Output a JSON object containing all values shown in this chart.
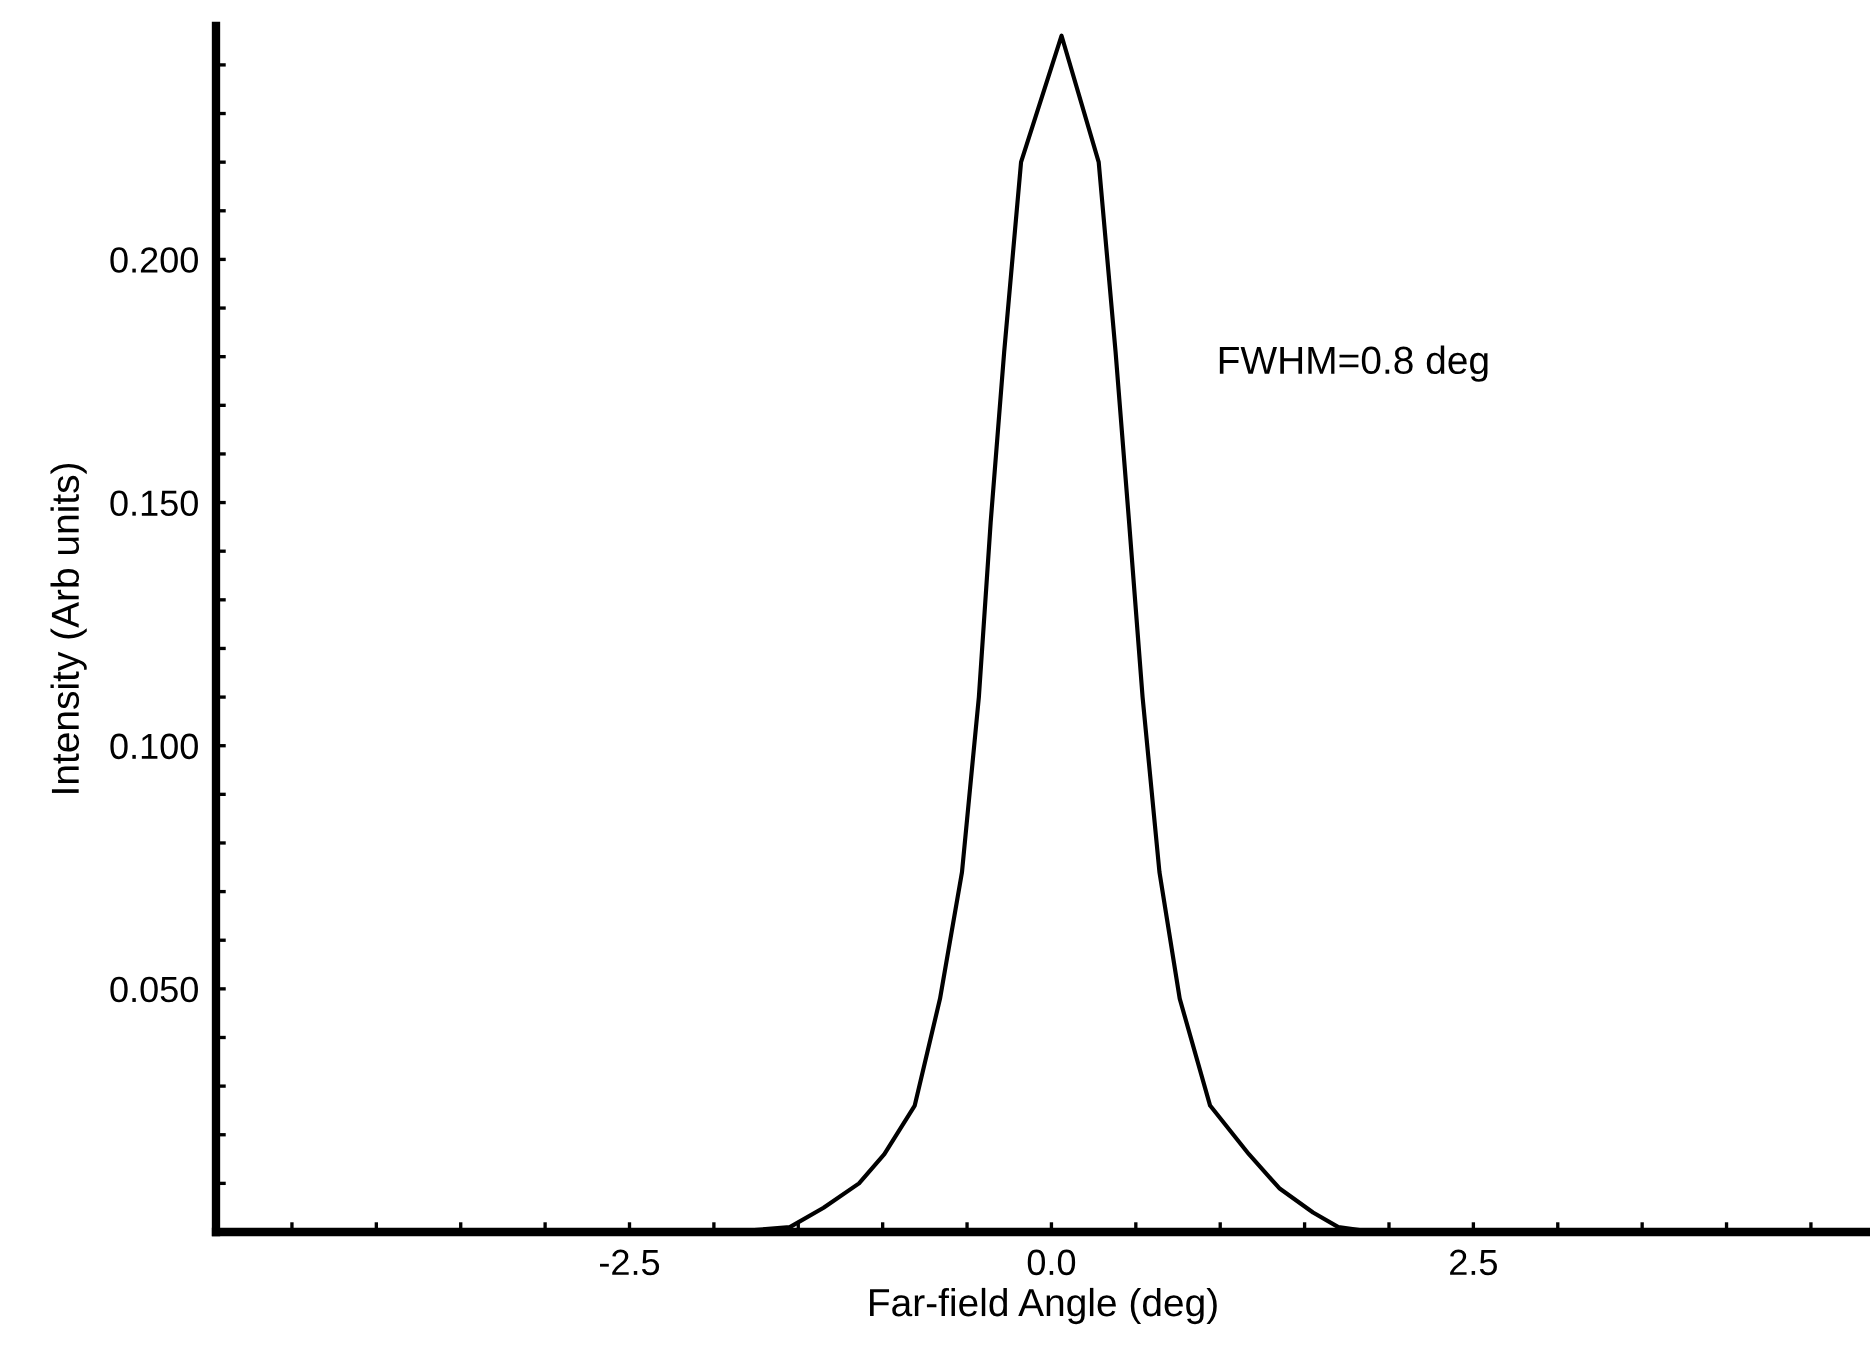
{
  "chart_data": {
    "type": "line",
    "xlabel": "Far-field Angle (deg)",
    "ylabel": "Intensity (Arb units)",
    "annotations": [
      "FWHM=0.8 deg"
    ],
    "series": [
      {
        "color": "#000000",
        "x": [
          -4.9,
          -2.5,
          -1.8,
          -1.55,
          -1.35,
          -1.14,
          -0.99,
          -0.81,
          -0.66,
          -0.53,
          -0.43,
          -0.36,
          -0.28,
          -0.18,
          0.06,
          0.28,
          0.38,
          0.46,
          0.54,
          0.64,
          0.76,
          0.94,
          1.17,
          1.35,
          1.55,
          1.7,
          1.91,
          2.5,
          4.8
        ],
        "values": [
          0,
          0,
          0.0003,
          0.001,
          0.005,
          0.01,
          0.016,
          0.026,
          0.048,
          0.074,
          0.11,
          0.146,
          0.181,
          0.22,
          0.246,
          0.22,
          0.181,
          0.146,
          0.11,
          0.074,
          0.048,
          0.026,
          0.016,
          0.009,
          0.004,
          0.001,
          0,
          0,
          0
        ]
      }
    ],
    "xlim": [
      -4.95,
      4.85
    ],
    "ylim": [
      0,
      0.248
    ],
    "xticks": [
      {
        "value": -4.5,
        "label": null
      },
      {
        "value": -4.0,
        "label": null
      },
      {
        "value": -3.5,
        "label": null
      },
      {
        "value": -3.0,
        "label": null
      },
      -2.5,
      {
        "value": -2.0,
        "label": null
      },
      {
        "value": -1.5,
        "label": null
      },
      {
        "value": -1.0,
        "label": null
      },
      {
        "value": -0.5,
        "label": null
      },
      {
        "value": 0,
        "label": "0.0"
      },
      {
        "value": 0.5,
        "label": null
      },
      {
        "value": 1.0,
        "label": null
      },
      {
        "value": 1.5,
        "label": null
      },
      {
        "value": 2.0,
        "label": null
      },
      2.5,
      {
        "value": 3.0,
        "label": null
      },
      {
        "value": 3.5,
        "label": null
      },
      {
        "value": 4.0,
        "label": null
      },
      {
        "value": 4.5,
        "label": null
      }
    ],
    "yticks": [
      {
        "value": 0.01,
        "label": null
      },
      {
        "value": 0.02,
        "label": null
      },
      {
        "value": 0.03,
        "label": null
      },
      {
        "value": 0.04,
        "label": null
      },
      {
        "value": 0.05,
        "label": "0.050"
      },
      {
        "value": 0.06,
        "label": null
      },
      {
        "value": 0.07,
        "label": null
      },
      {
        "value": 0.08,
        "label": null
      },
      {
        "value": 0.09,
        "label": null
      },
      {
        "value": 0.1,
        "label": "0.100"
      },
      {
        "value": 0.11,
        "label": null
      },
      {
        "value": 0.12,
        "label": null
      },
      {
        "value": 0.13,
        "label": null
      },
      {
        "value": 0.14,
        "label": null
      },
      {
        "value": 0.15,
        "label": "0.150"
      },
      {
        "value": 0.16,
        "label": null
      },
      {
        "value": 0.17,
        "label": null
      },
      {
        "value": 0.18,
        "label": null
      },
      {
        "value": 0.19,
        "label": null
      },
      {
        "value": 0.2,
        "label": "0.200"
      },
      {
        "value": 0.21,
        "label": null
      },
      {
        "value": 0.22,
        "label": null
      },
      {
        "value": 0.23,
        "label": null
      },
      {
        "value": 0.24,
        "label": null
      }
    ],
    "grid": false,
    "legend": false,
    "marker": "none",
    "line_style": "solid"
  }
}
